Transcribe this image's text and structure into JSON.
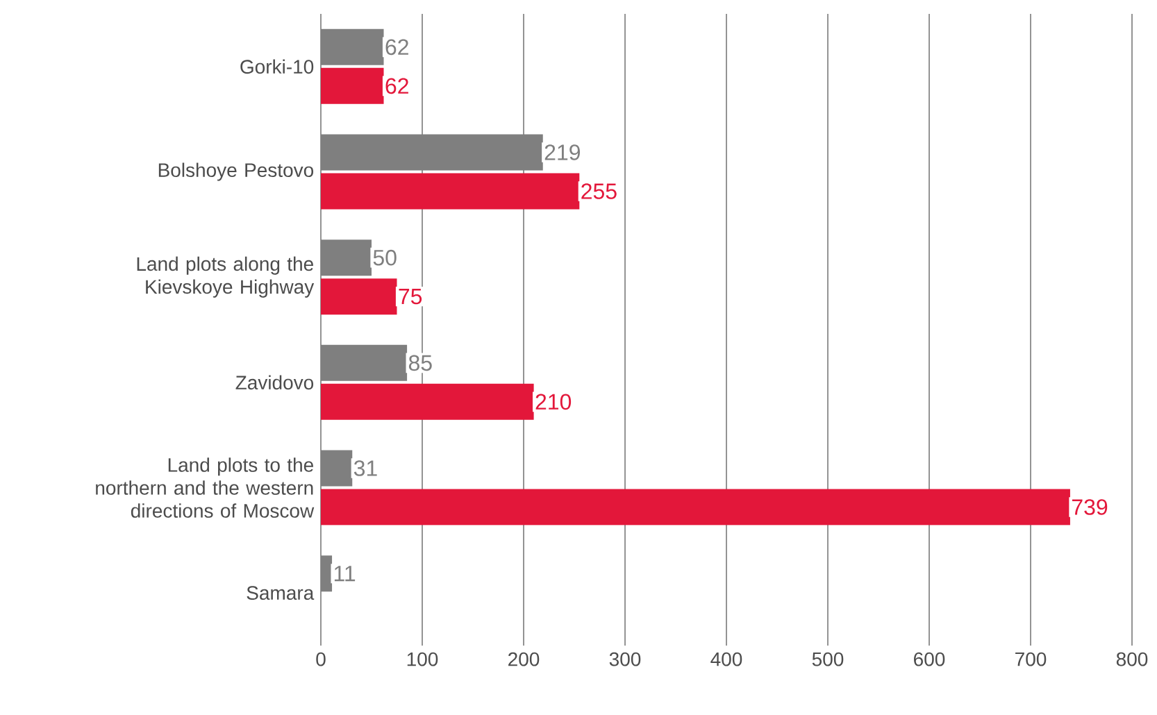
{
  "chart_data": {
    "type": "bar",
    "orientation": "horizontal",
    "categories": [
      "Gorki-10",
      "Bolshoye Pestovo",
      "Land plots along the Kievskoye Highway",
      "Zavidovo",
      "Land plots to the northern and the western directions of Moscow",
      "Samara"
    ],
    "series": [
      {
        "color": "#7f7f7f",
        "values": [
          62,
          219,
          50,
          85,
          31,
          11
        ]
      },
      {
        "color": "#e3173a",
        "values": [
          62,
          255,
          75,
          210,
          739,
          null
        ]
      }
    ],
    "xlim": [
      0,
      800
    ],
    "xticks": [
      0,
      100,
      200,
      300,
      400,
      500,
      600,
      700,
      800
    ],
    "grid": "x",
    "data_labels": true
  }
}
